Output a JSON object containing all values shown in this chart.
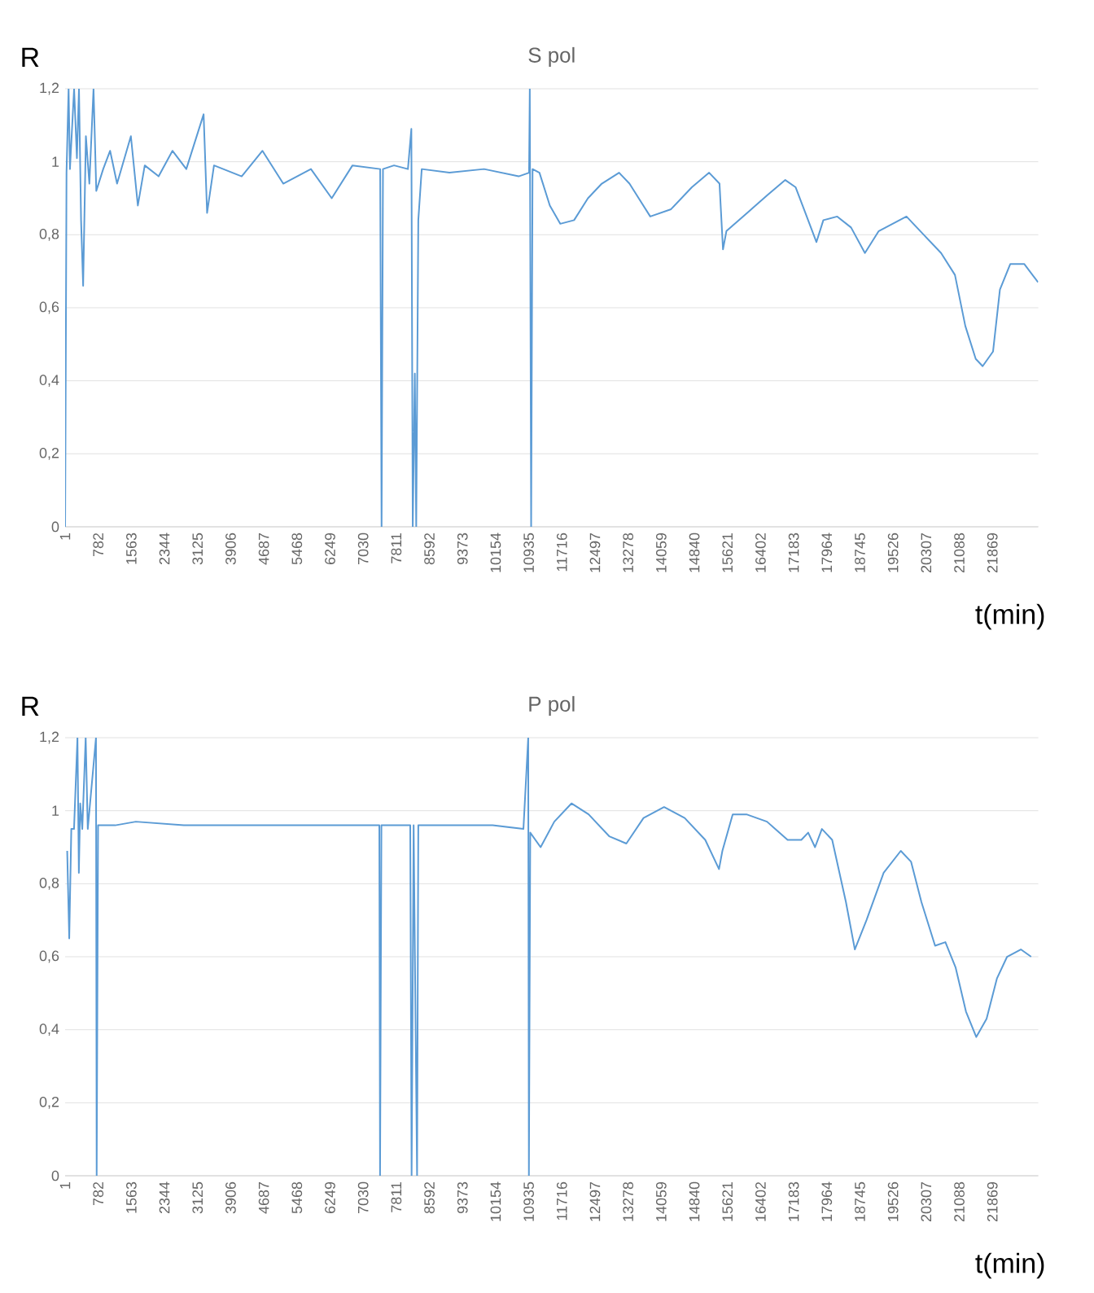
{
  "chart_data": [
    {
      "type": "line",
      "title": "S pol",
      "xlabel": "t(min)",
      "ylabel": "R",
      "color": "#5b9bd5",
      "marker": "none",
      "grid": "y",
      "xlim": [
        1,
        22950
      ],
      "ylim": [
        0,
        1.2
      ],
      "xticks": [
        1,
        782,
        1563,
        2344,
        3125,
        3906,
        4687,
        5468,
        6249,
        7030,
        7811,
        8592,
        9373,
        10154,
        10935,
        11716,
        12497,
        13278,
        14059,
        14840,
        15621,
        16402,
        17183,
        17964,
        18745,
        19526,
        20307,
        21088,
        21869
      ],
      "yticks": [
        0,
        {
          "value": 0.2,
          "label": "0,2"
        },
        {
          "value": 0.4,
          "label": "0,4"
        },
        {
          "value": 0.6,
          "label": "0,6"
        },
        {
          "value": 0.8,
          "label": "0,8"
        },
        1,
        {
          "value": 1.2,
          "label": "1,2"
        }
      ],
      "x": [
        1,
        34,
        83,
        115,
        213,
        279,
        328,
        377,
        426,
        491,
        573,
        671,
        736,
        899,
        1062,
        1226,
        1552,
        1716,
        1879,
        2206,
        2532,
        2859,
        3267,
        3349,
        3512,
        4165,
        4655,
        5145,
        5798,
        6288,
        6778,
        7431,
        7464,
        7497,
        7758,
        8085,
        8166,
        8199,
        8248,
        8281,
        8330,
        8411,
        9064,
        9881,
        10697,
        10942,
        10959,
        10991,
        11024,
        11187,
        11432,
        11677,
        12004,
        12330,
        12657,
        13065,
        13310,
        13800,
        14290,
        14780,
        15188,
        15433,
        15515,
        15596,
        16086,
        16576,
        16984,
        17229,
        17719,
        17882,
        18209,
        18535,
        18862,
        19188,
        19842,
        20168,
        20658,
        20985,
        21230,
        21475,
        21638,
        21883,
        22046,
        22291,
        22618,
        22945
      ],
      "values": [
        0,
        0.97,
        1.2,
        0.98,
        1.2,
        1.01,
        1.2,
        0.84,
        0.66,
        1.07,
        0.94,
        1.2,
        0.92,
        0.98,
        1.03,
        0.94,
        1.07,
        0.88,
        0.99,
        0.96,
        1.03,
        0.98,
        1.13,
        0.86,
        0.99,
        0.96,
        1.03,
        0.94,
        0.98,
        0.9,
        0.99,
        0.98,
        0,
        0.98,
        0.99,
        0.98,
        1.09,
        0,
        0.42,
        0,
        0.84,
        0.98,
        0.97,
        0.98,
        0.96,
        0.97,
        1.2,
        0,
        0.98,
        0.97,
        0.88,
        0.83,
        0.84,
        0.9,
        0.94,
        0.97,
        0.94,
        0.85,
        0.87,
        0.93,
        0.97,
        0.94,
        0.76,
        0.81,
        0.86,
        0.91,
        0.95,
        0.93,
        0.78,
        0.84,
        0.85,
        0.82,
        0.75,
        0.81,
        0.85,
        0.81,
        0.75,
        0.69,
        0.55,
        0.46,
        0.44,
        0.48,
        0.65,
        0.72,
        0.72,
        0.67
      ]
    },
    {
      "type": "line",
      "title": "P pol",
      "xlabel": "t(min)",
      "ylabel": "R",
      "color": "#5b9bd5",
      "marker": "none",
      "grid": "y",
      "xlim": [
        1,
        22950
      ],
      "ylim": [
        0,
        1.2
      ],
      "xticks": [
        1,
        782,
        1563,
        2344,
        3125,
        3906,
        4687,
        5468,
        6249,
        7030,
        7811,
        8592,
        9373,
        10154,
        10935,
        11716,
        12497,
        13278,
        14059,
        14840,
        15621,
        16402,
        17183,
        17964,
        18745,
        19526,
        20307,
        21088,
        21869
      ],
      "yticks": [
        0,
        {
          "value": 0.2,
          "label": "0,2"
        },
        {
          "value": 0.4,
          "label": "0,4"
        },
        {
          "value": 0.6,
          "label": "0,6"
        },
        {
          "value": 0.8,
          "label": "0,8"
        },
        1,
        {
          "value": 1.2,
          "label": "1,2"
        }
      ],
      "x": [
        50,
        98,
        147,
        211,
        292,
        325,
        357,
        406,
        486,
        535,
        729,
        745,
        778,
        1182,
        1668,
        2800,
        4418,
        6036,
        7411,
        7428,
        7460,
        8140,
        8172,
        8220,
        8301,
        8330,
        9110,
        10081,
        10809,
        10922,
        10938,
        10970,
        11214,
        11537,
        11942,
        12346,
        12832,
        13236,
        13641,
        14126,
        14612,
        15097,
        15421,
        15501,
        15744,
        16068,
        16553,
        17039,
        17362,
        17524,
        17686,
        17848,
        18090,
        18414,
        18624,
        18899,
        19304,
        19708,
        19951,
        20194,
        20517,
        20760,
        21002,
        21245,
        21488,
        21731,
        21974,
        22215,
        22539,
        22782
      ],
      "values": [
        0.89,
        0.65,
        0.95,
        0.95,
        1.2,
        0.83,
        1.02,
        0.95,
        1.2,
        0.95,
        1.2,
        0,
        0.96,
        0.96,
        0.97,
        0.96,
        0.96,
        0.96,
        0.96,
        0,
        0.96,
        0.96,
        0,
        0.96,
        0,
        0.96,
        0.96,
        0.96,
        0.95,
        1.2,
        0,
        0.94,
        0.9,
        0.97,
        1.02,
        0.99,
        0.93,
        0.91,
        0.98,
        1.01,
        0.98,
        0.92,
        0.84,
        0.89,
        0.99,
        0.99,
        0.97,
        0.92,
        0.92,
        0.94,
        0.9,
        0.95,
        0.92,
        0.75,
        0.62,
        0.7,
        0.83,
        0.89,
        0.86,
        0.75,
        0.63,
        0.64,
        0.57,
        0.45,
        0.38,
        0.43,
        0.54,
        0.6,
        0.62,
        0.6
      ]
    }
  ]
}
